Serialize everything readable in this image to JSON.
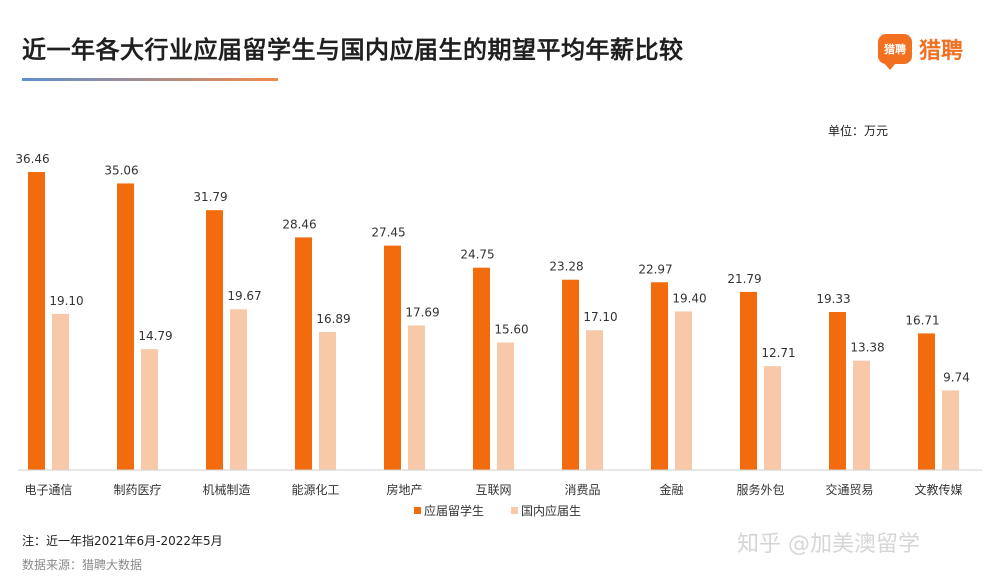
{
  "header": {
    "title": "近一年各大行业应届留学生与国内应届生的期望平均年薪比较",
    "logo_icon_text": "猎聘",
    "logo_text": "猎聘"
  },
  "unit_label": "单位：万元",
  "note": "注：近一年指2021年6月-2022年5月",
  "source": "数据来源：猎聘大数据",
  "watermark": "知乎 @加美澳留学",
  "colors": {
    "overseas": "#f26c0d",
    "domestic": "#f7c9a8",
    "accent": "#f37021"
  },
  "chart_data": {
    "type": "bar",
    "title": "近一年各大行业应届留学生与国内应届生的期望平均年薪比较",
    "ylabel": "",
    "xlabel": "",
    "ylim": [
      0,
      40
    ],
    "grid": false,
    "legend_position": "bottom-center",
    "categories": [
      "电子通信",
      "制药医疗",
      "机械制造",
      "能源化工",
      "房地产",
      "互联网",
      "消费品",
      "金融",
      "服务外包",
      "交通贸易",
      "文教传媒"
    ],
    "series": [
      {
        "name": "应届留学生",
        "values": [
          36.46,
          35.06,
          31.79,
          28.46,
          27.45,
          24.75,
          23.28,
          22.97,
          21.79,
          19.33,
          16.71
        ]
      },
      {
        "name": "国内应届生",
        "values": [
          19.1,
          14.79,
          19.67,
          16.89,
          17.69,
          15.6,
          17.1,
          19.4,
          12.71,
          13.38,
          9.74
        ]
      }
    ]
  }
}
